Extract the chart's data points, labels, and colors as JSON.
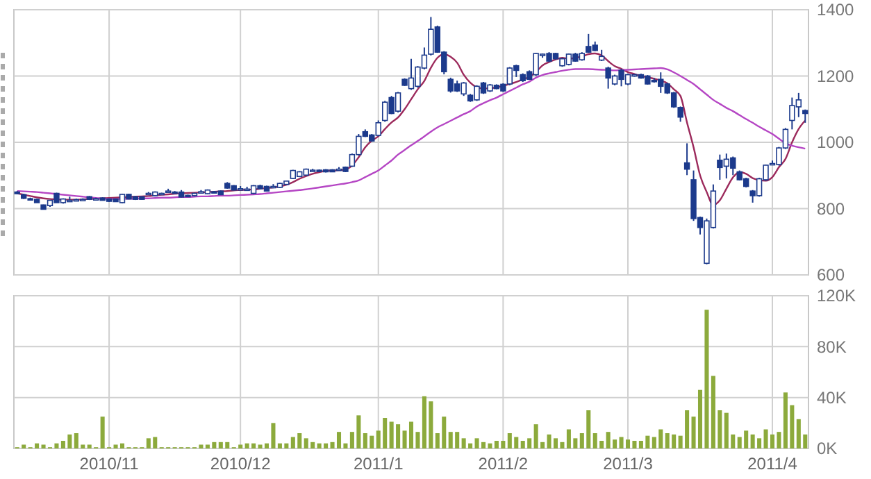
{
  "chart_data": [
    {
      "type": "candlestick",
      "color": "#1c3a8c",
      "categories": [
        null,
        null,
        null,
        null,
        null,
        null,
        null,
        null,
        null,
        null,
        null,
        null,
        null,
        null,
        "2010/11",
        null,
        null,
        null,
        null,
        null,
        null,
        null,
        null,
        null,
        null,
        null,
        null,
        null,
        null,
        null,
        null,
        null,
        null,
        null,
        "2010/12",
        null,
        null,
        null,
        null,
        null,
        null,
        null,
        null,
        null,
        null,
        null,
        null,
        null,
        null,
        null,
        null,
        null,
        null,
        null,
        null,
        "2011/1",
        null,
        null,
        null,
        null,
        null,
        null,
        null,
        null,
        null,
        null,
        null,
        null,
        null,
        null,
        null,
        null,
        null,
        null,
        "2011/2",
        null,
        null,
        null,
        null,
        null,
        null,
        null,
        null,
        null,
        null,
        null,
        null,
        null,
        null,
        null,
        null,
        null,
        null,
        "2011/3",
        null,
        null,
        null,
        null,
        null,
        null,
        null,
        null,
        null,
        null,
        null,
        null,
        null,
        null,
        null,
        null,
        null,
        null,
        null,
        null,
        null,
        "2011/4",
        null,
        null,
        null,
        null,
        null
      ],
      "ohlc": [
        [
          850,
          853,
          843,
          845
        ],
        [
          842,
          845,
          829,
          831
        ],
        [
          830,
          833,
          826,
          829
        ],
        [
          828,
          830,
          818,
          818
        ],
        [
          811,
          812,
          798,
          798
        ],
        [
          809,
          826,
          805,
          825
        ],
        [
          846,
          848,
          818,
          818
        ],
        [
          818,
          831,
          815,
          829
        ],
        [
          825,
          836,
          822,
          825
        ],
        [
          826,
          830,
          822,
          827
        ],
        [
          827,
          831,
          824,
          828
        ],
        [
          836,
          838,
          826,
          828
        ],
        [
          830,
          833,
          826,
          830
        ],
        [
          832,
          834,
          824,
          825
        ],
        [
          829,
          831,
          820,
          822
        ],
        [
          829,
          830,
          820,
          821
        ],
        [
          818,
          845,
          816,
          843
        ],
        [
          843,
          845,
          828,
          829
        ],
        [
          836,
          838,
          826,
          828
        ],
        [
          836,
          837,
          827,
          828
        ],
        [
          843,
          850,
          842,
          846
        ],
        [
          839,
          852,
          837,
          850
        ],
        [
          846,
          848,
          844,
          846
        ],
        [
          852,
          860,
          851,
          853
        ],
        [
          850,
          853,
          846,
          849
        ],
        [
          850,
          856,
          834,
          835
        ],
        [
          840,
          842,
          836,
          838
        ],
        [
          839,
          848,
          837,
          846
        ],
        [
          850,
          856,
          849,
          851
        ],
        [
          845,
          858,
          843,
          856
        ],
        [
          851,
          853,
          848,
          850
        ],
        [
          853,
          855,
          841,
          842
        ],
        [
          876,
          880,
          860,
          862
        ],
        [
          869,
          871,
          855,
          856
        ],
        [
          860,
          868,
          858,
          860
        ],
        [
          858,
          866,
          856,
          859
        ],
        [
          846,
          871,
          844,
          869
        ],
        [
          869,
          872,
          858,
          860
        ],
        [
          867,
          869,
          852,
          853
        ],
        [
          866,
          874,
          864,
          867
        ],
        [
          864,
          878,
          862,
          876
        ],
        [
          873,
          884,
          871,
          883
        ],
        [
          891,
          917,
          889,
          915
        ],
        [
          897,
          913,
          895,
          911
        ],
        [
          901,
          921,
          899,
          919
        ],
        [
          915,
          920,
          912,
          916
        ],
        [
          916,
          918,
          913,
          915
        ],
        [
          917,
          919,
          909,
          911
        ],
        [
          917,
          919,
          910,
          911
        ],
        [
          917,
          925,
          915,
          919
        ],
        [
          925,
          927,
          910,
          912
        ],
        [
          928,
          966,
          926,
          963
        ],
        [
          963,
          1025,
          960,
          1018
        ],
        [
          1032,
          1039,
          1016,
          1018
        ],
        [
          1022,
          1025,
          1002,
          1004
        ],
        [
          1021,
          1066,
          1018,
          1059
        ],
        [
          1066,
          1125,
          1062,
          1121
        ],
        [
          1135,
          1140,
          1085,
          1087
        ],
        [
          1094,
          1152,
          1090,
          1149
        ],
        [
          1190,
          1193,
          1170,
          1172
        ],
        [
          1162,
          1252,
          1158,
          1194
        ],
        [
          1169,
          1230,
          1165,
          1227
        ],
        [
          1224,
          1286,
          1220,
          1263
        ],
        [
          1266,
          1378,
          1262,
          1341
        ],
        [
          1348,
          1352,
          1270,
          1272
        ],
        [
          1272,
          1275,
          1205,
          1213
        ],
        [
          1190,
          1195,
          1150,
          1155
        ],
        [
          1176,
          1186,
          1152,
          1155
        ],
        [
          1146,
          1182,
          1140,
          1179
        ],
        [
          1142,
          1146,
          1122,
          1125
        ],
        [
          1128,
          1172,
          1125,
          1169
        ],
        [
          1179,
          1182,
          1146,
          1149
        ],
        [
          1155,
          1176,
          1152,
          1173
        ],
        [
          1172,
          1175,
          1160,
          1162
        ],
        [
          1175,
          1178,
          1152,
          1155
        ],
        [
          1176,
          1227,
          1172,
          1224
        ],
        [
          1231,
          1234,
          1197,
          1217
        ],
        [
          1204,
          1208,
          1182,
          1186
        ],
        [
          1213,
          1217,
          1188,
          1190
        ],
        [
          1204,
          1270,
          1200,
          1268
        ],
        [
          1264,
          1268,
          1255,
          1266
        ],
        [
          1268,
          1272,
          1242,
          1245
        ],
        [
          1268,
          1270,
          1250,
          1252
        ],
        [
          1231,
          1255,
          1228,
          1252
        ],
        [
          1235,
          1268,
          1232,
          1266
        ],
        [
          1266,
          1270,
          1243,
          1245
        ],
        [
          1249,
          1272,
          1246,
          1268
        ],
        [
          1289,
          1327,
          1270,
          1272
        ],
        [
          1293,
          1304,
          1275,
          1277
        ],
        [
          1248,
          1279,
          1245,
          1259
        ],
        [
          1224,
          1228,
          1162,
          1194
        ],
        [
          1176,
          1204,
          1172,
          1200
        ],
        [
          1217,
          1222,
          1169,
          1190
        ],
        [
          1176,
          1207,
          1172,
          1204
        ],
        [
          1202,
          1206,
          1198,
          1204
        ],
        [
          1204,
          1207,
          1192,
          1194
        ],
        [
          1200,
          1203,
          1174,
          1176
        ],
        [
          1187,
          1194,
          1180,
          1186
        ],
        [
          1190,
          1211,
          1149,
          1169
        ],
        [
          1176,
          1180,
          1146,
          1149
        ],
        [
          1149,
          1152,
          1104,
          1107
        ],
        [
          1105,
          1108,
          1062,
          1076
        ],
        [
          938,
          997,
          901,
          919
        ],
        [
          887,
          915,
          763,
          770
        ],
        [
          773,
          776,
          722,
          743
        ],
        [
          635,
          770,
          632,
          763
        ],
        [
          743,
          873,
          740,
          853
        ],
        [
          946,
          963,
          887,
          924
        ],
        [
          928,
          966,
          891,
          949
        ],
        [
          953,
          957,
          901,
          922
        ],
        [
          911,
          915,
          885,
          887
        ],
        [
          890,
          893,
          864,
          867
        ],
        [
          853,
          856,
          818,
          839
        ],
        [
          839,
          893,
          836,
          890
        ],
        [
          887,
          933,
          884,
          931
        ],
        [
          935,
          945,
          932,
          936
        ],
        [
          933,
          986,
          930,
          983
        ],
        [
          983,
          1043,
          980,
          1039
        ],
        [
          1066,
          1135,
          1039,
          1111
        ],
        [
          1107,
          1149,
          1076,
          1128
        ],
        [
          1096,
          1099,
          1059,
          1087
        ]
      ],
      "series": [
        {
          "type": "line",
          "color": "#9c2a5c",
          "values": [
            846,
            842,
            838,
            834,
            831,
            829,
            828,
            827,
            827,
            827,
            828,
            829,
            830,
            831,
            832,
            833,
            834,
            835,
            836,
            837,
            838,
            840,
            842,
            843,
            845,
            846,
            847,
            848,
            849,
            850,
            851,
            852,
            853,
            855,
            856,
            857,
            858,
            860,
            862,
            864,
            867,
            872,
            880,
            890,
            898,
            905,
            910,
            914,
            915,
            916,
            918,
            930,
            955,
            985,
            1005,
            1018,
            1040,
            1060,
            1075,
            1100,
            1130,
            1160,
            1185,
            1225,
            1255,
            1266,
            1258,
            1240,
            1204,
            1180,
            1166,
            1162,
            1163,
            1166,
            1170,
            1176,
            1182,
            1190,
            1198,
            1212,
            1232,
            1242,
            1250,
            1255,
            1252,
            1255,
            1259,
            1266,
            1268,
            1262,
            1245,
            1230,
            1222,
            1212,
            1206,
            1200,
            1196,
            1192,
            1186,
            1178,
            1160,
            1140,
            1060,
            985,
            900,
            850,
            811,
            825,
            860,
            894,
            910,
            905,
            892,
            886,
            884,
            895,
            925,
            950,
            1000,
            1040,
            1066
          ]
        },
        {
          "type": "line",
          "color": "#b546c4",
          "values": [
            853,
            852,
            851,
            850,
            848,
            846,
            844,
            842,
            840,
            838,
            836,
            834,
            832,
            830,
            829,
            829,
            829,
            830,
            830,
            831,
            831,
            832,
            833,
            833,
            834,
            835,
            835,
            836,
            837,
            837,
            838,
            839,
            839,
            840,
            841,
            842,
            843,
            844,
            846,
            848,
            850,
            852,
            854,
            856,
            858,
            861,
            864,
            867,
            870,
            873,
            876,
            880,
            885,
            895,
            905,
            915,
            930,
            945,
            963,
            977,
            991,
            1004,
            1018,
            1032,
            1045,
            1055,
            1065,
            1075,
            1085,
            1094,
            1108,
            1118,
            1127,
            1135,
            1145,
            1155,
            1165,
            1175,
            1183,
            1195,
            1203,
            1208,
            1212,
            1216,
            1219,
            1221,
            1221,
            1221,
            1220,
            1219,
            1218,
            1217,
            1218,
            1219,
            1220,
            1221,
            1222,
            1223,
            1224,
            1220,
            1211,
            1200,
            1188,
            1176,
            1160,
            1144,
            1128,
            1116,
            1104,
            1094,
            1082,
            1070,
            1059,
            1047,
            1036,
            1025,
            1011,
            997,
            990,
            985,
            981
          ]
        }
      ],
      "ylim": [
        600,
        1400
      ],
      "yticks": [
        600,
        800,
        1000,
        1200,
        1400
      ],
      "grid": true,
      "tick_labels": "y"
    },
    {
      "type": "bar",
      "color": "#8caa3c",
      "categories": [
        null,
        null,
        null,
        null,
        null,
        null,
        null,
        null,
        null,
        null,
        null,
        null,
        null,
        null,
        "2010/11",
        null,
        null,
        null,
        null,
        null,
        null,
        null,
        null,
        null,
        null,
        null,
        null,
        null,
        null,
        null,
        null,
        null,
        null,
        null,
        "2010/12",
        null,
        null,
        null,
        null,
        null,
        null,
        null,
        null,
        null,
        null,
        null,
        null,
        null,
        null,
        null,
        null,
        null,
        null,
        null,
        null,
        "2011/1",
        null,
        null,
        null,
        null,
        null,
        null,
        null,
        null,
        null,
        null,
        null,
        null,
        null,
        null,
        null,
        null,
        null,
        null,
        "2011/2",
        null,
        null,
        null,
        null,
        null,
        null,
        null,
        null,
        null,
        null,
        null,
        null,
        null,
        null,
        null,
        null,
        null,
        null,
        "2011/3",
        null,
        null,
        null,
        null,
        null,
        null,
        null,
        null,
        null,
        null,
        null,
        null,
        null,
        null,
        null,
        null,
        null,
        null,
        null,
        null,
        null,
        "2011/4",
        null,
        null,
        null,
        null,
        null
      ],
      "values": [
        1,
        3,
        1,
        4,
        3,
        1,
        4,
        6,
        11,
        12,
        3,
        3,
        1,
        25,
        1,
        3,
        4,
        1,
        1,
        1,
        8,
        9,
        1,
        1,
        1,
        1,
        1,
        1,
        3,
        3,
        5,
        5,
        5,
        1,
        3,
        4,
        4,
        3,
        4,
        20,
        4,
        4,
        9,
        12,
        8,
        5,
        4,
        4,
        5,
        13,
        4,
        13,
        26,
        12,
        10,
        14,
        24,
        21,
        19,
        14,
        21,
        13,
        41,
        37,
        12,
        25,
        13,
        13,
        8,
        4,
        8,
        5,
        4,
        6,
        6,
        12,
        9,
        6,
        8,
        19,
        5,
        11,
        8,
        5,
        15,
        8,
        12,
        30,
        12,
        6,
        13,
        7,
        9,
        7,
        6,
        6,
        10,
        9,
        15,
        12,
        11,
        10,
        30,
        25,
        46,
        109,
        57,
        30,
        28,
        11,
        9,
        14,
        11,
        8,
        15,
        11,
        13,
        44,
        34,
        23,
        11
      ],
      "ylim": [
        0,
        120
      ],
      "yticks": [
        {
          "value": 0,
          "label": "0K"
        },
        {
          "value": 40,
          "label": "40K"
        },
        {
          "value": 80,
          "label": "80K"
        },
        {
          "value": 120,
          "label": "120K"
        }
      ],
      "grid": true
    }
  ]
}
